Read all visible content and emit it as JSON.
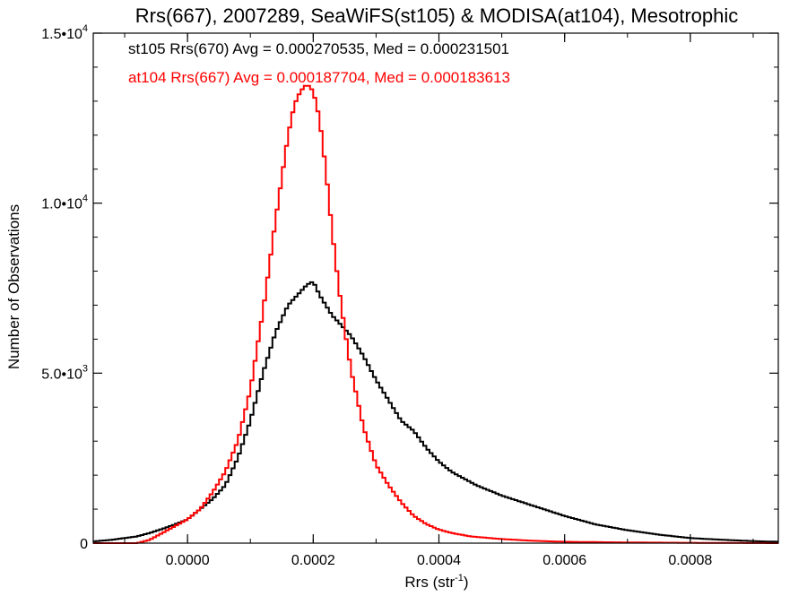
{
  "chart_data": {
    "type": "histogram",
    "title": "Rrs(667), 2007289, SeaWiFS(st105) & MODISA(at104), Mesotrophic",
    "xlabel": {
      "base": "Rrs (str",
      "sup": "-1",
      "tail": ")"
    },
    "ylabel": "Number of Observations",
    "xlim": [
      -0.00015,
      0.00094
    ],
    "ylim": [
      0,
      15000
    ],
    "x_ticks": [
      {
        "value": 0.0,
        "label": "0.0000"
      },
      {
        "value": 0.0002,
        "label": "0.0002"
      },
      {
        "value": 0.0004,
        "label": "0.0004"
      },
      {
        "value": 0.0006,
        "label": "0.0006"
      },
      {
        "value": 0.0008,
        "label": "0.0008"
      }
    ],
    "y_ticks": [
      {
        "value": 0,
        "mant": "0",
        "exp": ""
      },
      {
        "value": 5000,
        "mant": "5.0•10",
        "exp": "3"
      },
      {
        "value": 10000,
        "mant": "1.0•10",
        "exp": "4"
      },
      {
        "value": 15000,
        "mant": "1.5•10",
        "exp": "4"
      }
    ],
    "annotations": [
      {
        "text": "st105 Rrs(670) Avg = 0.000270535, Med = 0.000231501",
        "color": "#000000"
      },
      {
        "text": "at104 Rrs(667) Avg = 0.000187704, Med = 0.000183613",
        "color": "#ff0000"
      }
    ],
    "series": [
      {
        "color": "#000000",
        "x": [
          -0.00015,
          -0.00012,
          -0.0001,
          -8e-05,
          -6e-05,
          -4e-05,
          -2e-05,
          0.0,
          2e-05,
          4e-05,
          6e-05,
          8e-05,
          0.0001,
          0.00012,
          0.00014,
          0.00016,
          0.00018,
          0.00019,
          0.0002,
          0.00021,
          0.00022,
          0.00023,
          0.00024,
          0.00026,
          0.00028,
          0.0003,
          0.00032,
          0.00034,
          0.00036,
          0.00038,
          0.0004,
          0.00042,
          0.00044,
          0.00046,
          0.00048,
          0.0005,
          0.00055,
          0.0006,
          0.00065,
          0.0007,
          0.00075,
          0.0008,
          0.00085,
          0.0009,
          0.00094
        ],
        "y": [
          50,
          100,
          150,
          200,
          300,
          420,
          550,
          700,
          1000,
          1300,
          1700,
          2500,
          3600,
          5000,
          6200,
          7000,
          7400,
          7600,
          7700,
          7300,
          7000,
          6700,
          6500,
          6100,
          5500,
          4800,
          4200,
          3600,
          3300,
          2800,
          2400,
          2100,
          1900,
          1700,
          1550,
          1400,
          1100,
          800,
          550,
          380,
          250,
          150,
          100,
          60,
          40
        ]
      },
      {
        "color": "#ff0000",
        "x": [
          -0.00015,
          -0.00012,
          -0.0001,
          -8e-05,
          -6e-05,
          -4e-05,
          -2e-05,
          0.0,
          2e-05,
          4e-05,
          6e-05,
          8e-05,
          0.0001,
          0.00012,
          0.00014,
          0.00016,
          0.00017,
          0.00018,
          0.00019,
          0.0002,
          0.00021,
          0.00022,
          0.00023,
          0.00024,
          0.00025,
          0.00026,
          0.00028,
          0.0003,
          0.00032,
          0.00034,
          0.00036,
          0.00038,
          0.0004,
          0.00042,
          0.00045,
          0.0005,
          0.00055,
          0.0006,
          0.0007,
          0.0008,
          0.00094
        ],
        "y": [
          0,
          0,
          0,
          0,
          100,
          300,
          500,
          700,
          1000,
          1500,
          2100,
          3000,
          4500,
          6800,
          9500,
          12000,
          12900,
          13300,
          13500,
          13300,
          12500,
          11000,
          9200,
          7600,
          6300,
          5100,
          3400,
          2300,
          1700,
          1200,
          800,
          560,
          400,
          300,
          200,
          120,
          70,
          40,
          20,
          10,
          0
        ]
      }
    ]
  }
}
